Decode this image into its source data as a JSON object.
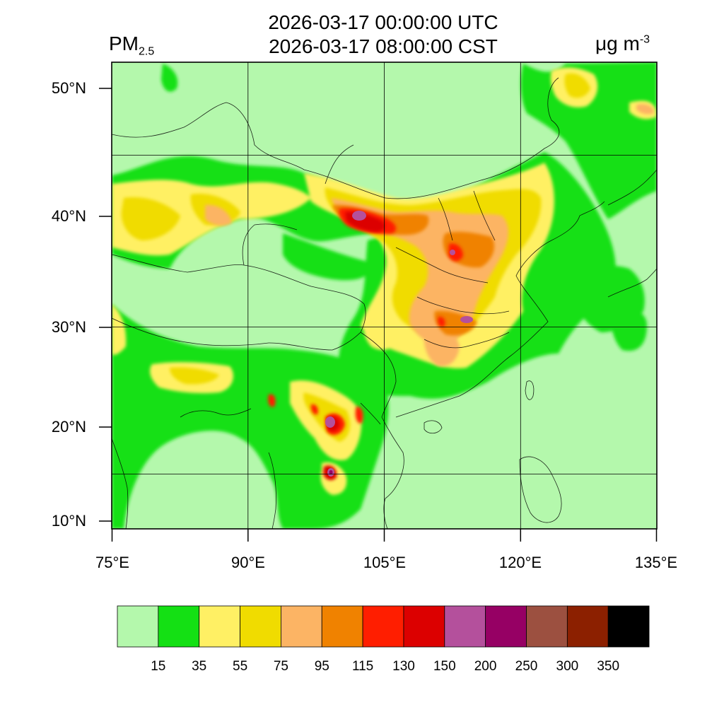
{
  "title": {
    "line1": "2026-03-17 00:00:00 UTC",
    "line2": "2026-03-17 08:00:00 CST"
  },
  "variable": {
    "main": "PM",
    "sub": "2.5"
  },
  "units": {
    "main": "μg m",
    "sup": "-3"
  },
  "map": {
    "projection": "lat-lon",
    "lon_range": [
      75,
      135
    ],
    "lat_range": [
      9,
      52
    ],
    "lat_ticks": [
      "10°N",
      "20°N",
      "30°N",
      "40°N",
      "50°N"
    ],
    "lon_ticks": [
      "75°E",
      "90°E",
      "105°E",
      "120°E",
      "135°E"
    ],
    "grid": true
  },
  "colorbar": {
    "thresholds": [
      "15",
      "35",
      "55",
      "75",
      "95",
      "115",
      "130",
      "150",
      "200",
      "250",
      "300",
      "350"
    ],
    "colors": [
      "#b4f8ac",
      "#14e014",
      "#fff064",
      "#f0dc00",
      "#fcb464",
      "#f08200",
      "#ff1e00",
      "#dc0000",
      "#b4509c",
      "#960064",
      "#9c5040",
      "#8c2000",
      "#000000"
    ]
  }
}
